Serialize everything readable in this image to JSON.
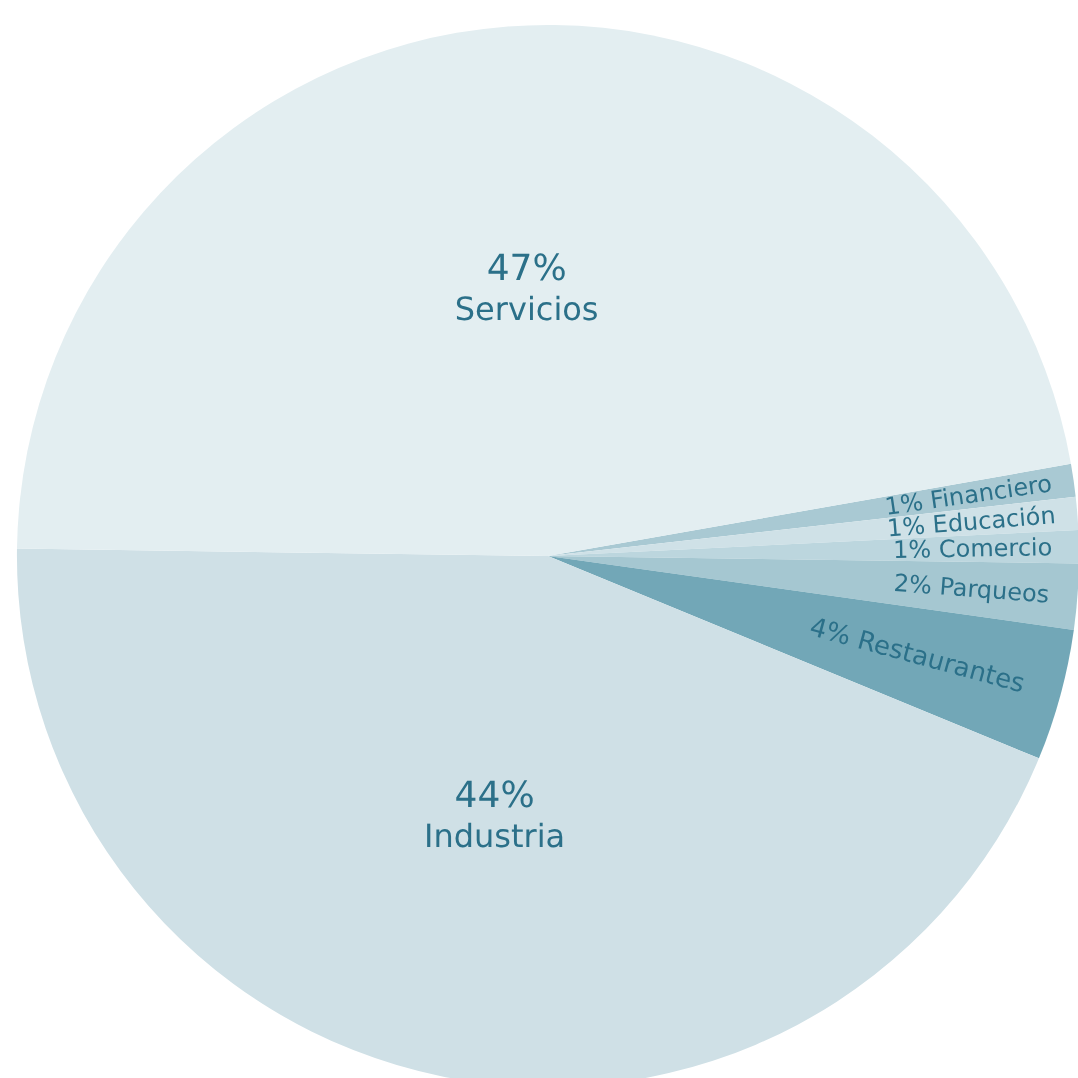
{
  "chart_data": {
    "type": "pie",
    "categories": [
      "Financiero",
      "Educación",
      "Comercio",
      "Parqueos",
      "Restaurantes",
      "Industria",
      "Servicios"
    ],
    "values": [
      1,
      1,
      1,
      2,
      4,
      44,
      47
    ],
    "colors": [
      "#a9c9d3",
      "#cfe1e7",
      "#bcd6de",
      "#a5c7d1",
      "#72a7b7",
      "#cfe0e6",
      "#e3eef1"
    ],
    "value_labels": [
      "1%",
      "1%",
      "1%",
      "2%",
      "4%",
      "44%",
      "47%"
    ]
  }
}
